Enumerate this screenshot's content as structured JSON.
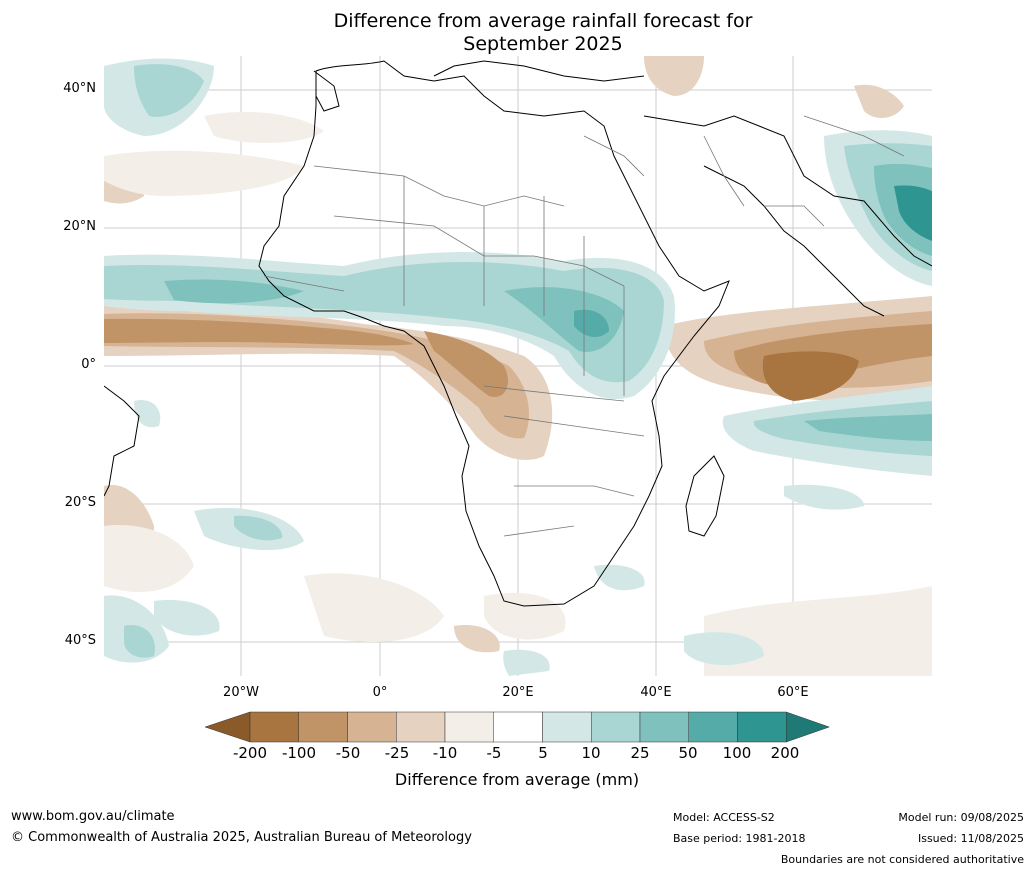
{
  "title_line1": "Difference from average rainfall forecast for",
  "title_line2": "September 2025",
  "lat_labels": [
    "40°N",
    "20°N",
    "0°",
    "20°S",
    "40°S"
  ],
  "lon_labels": [
    "20°W",
    "0°",
    "20°E",
    "40°E",
    "60°E"
  ],
  "colorbar": {
    "ticks": [
      "-200",
      "-100",
      "-50",
      "-25",
      "-10",
      "-5",
      "5",
      "10",
      "25",
      "50",
      "100",
      "200"
    ],
    "colors": [
      "#8b5a2b",
      "#a8743f",
      "#c19467",
      "#d6b393",
      "#e5d2c0",
      "#f3eee8",
      "#ffffff",
      "#d3e8e6",
      "#a9d6d3",
      "#7fc1bd",
      "#55aba7",
      "#2e9590",
      "#1f7a76"
    ],
    "label": "Difference from average (mm)"
  },
  "footer": {
    "website": "www.bom.gov.au/climate",
    "copyright": "© Commonwealth of Australia 2025, Australian Bureau of Meteorology",
    "model": "Model: ACCESS-S2",
    "base_period": "Base period: 1981-2018",
    "model_run": "Model run: 09/08/2025",
    "issued": "Issued: 11/08/2025",
    "disclaimer": "Boundaries are not considered authoritative"
  }
}
